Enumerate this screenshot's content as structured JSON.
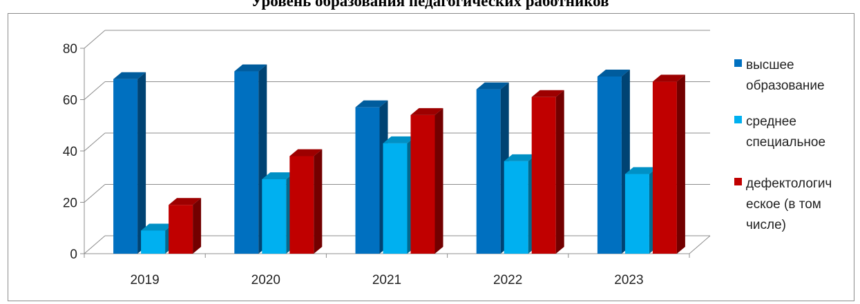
{
  "chart_data": {
    "type": "bar",
    "title": "Уровень образования педагогических работников",
    "categories": [
      "2019",
      "2020",
      "2021",
      "2022",
      "2023"
    ],
    "series": [
      {
        "name": "высшее образование",
        "values": [
          68,
          71,
          57,
          64,
          69
        ],
        "color": "#0070c0"
      },
      {
        "name": "среднее специальное",
        "values": [
          9,
          29,
          43,
          36,
          31
        ],
        "color": "#00b0f0"
      },
      {
        "name": "дефектологическое (в том числе)",
        "values": [
          19,
          38,
          54,
          61,
          67
        ],
        "color": "#c00000"
      }
    ],
    "yticks": [
      "0",
      "20",
      "40",
      "60",
      "80"
    ],
    "ylim": [
      0,
      80
    ],
    "grid": true,
    "legend_position": "right",
    "legend_lines": [
      [
        "высшее",
        "образование"
      ],
      [
        "среднее",
        "специальное"
      ],
      [
        "дефектологич",
        "еское (в том",
        "числе)"
      ]
    ]
  }
}
